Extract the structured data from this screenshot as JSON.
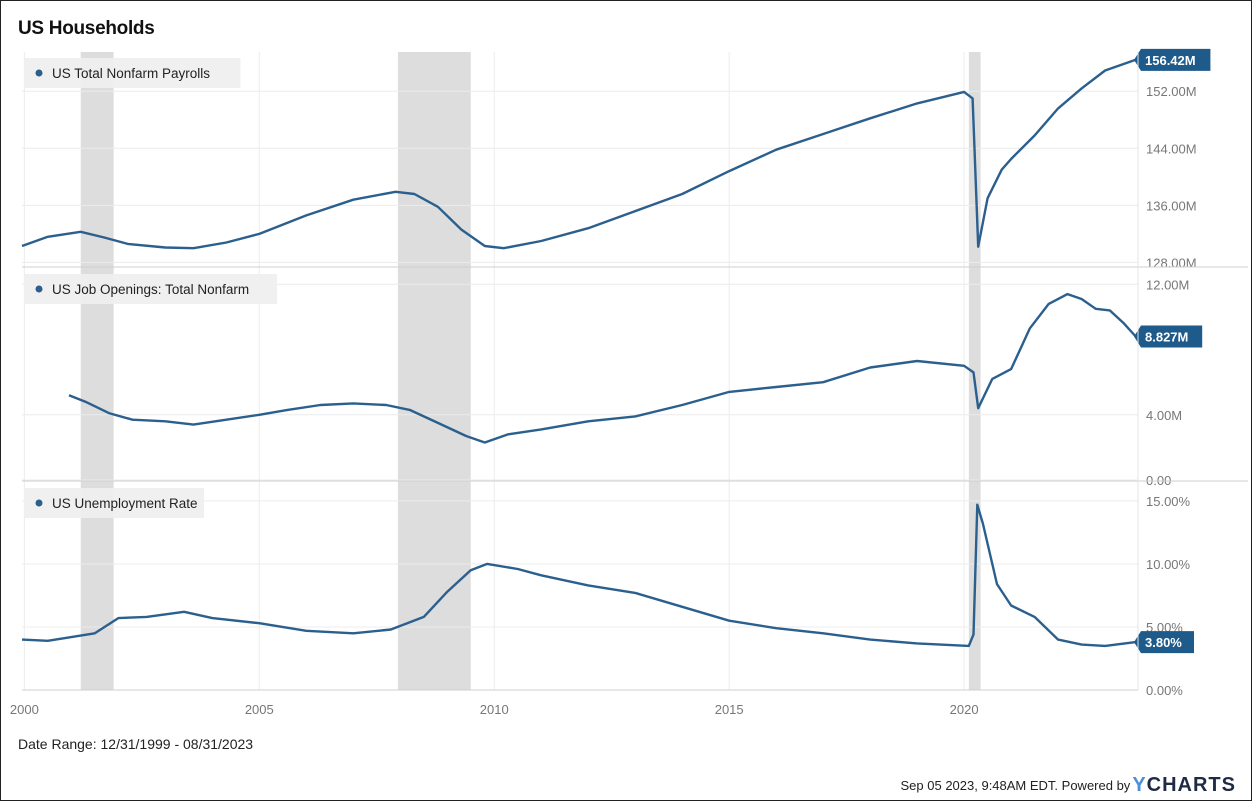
{
  "title": "US Households",
  "date_range": "Date Range: 12/31/1999 - 08/31/2023",
  "footer": {
    "text": "Sep 05 2023, 9:48AM EDT. Powered by",
    "brand_y": "Y",
    "brand_rest": "CHARTS"
  },
  "colors": {
    "line": "#2b5f8e",
    "badge": "#1e5a8a",
    "recession": "#dddddd",
    "grid": "#ececec"
  },
  "chart_data": {
    "type": "line",
    "x_ticks": [
      "2000",
      "2005",
      "2010",
      "2015",
      "2020"
    ],
    "x_range": [
      1999.95,
      2023.7
    ],
    "recessions": [
      [
        2001.2,
        2001.9
      ],
      [
        2007.95,
        2009.5
      ],
      [
        2020.1,
        2020.35
      ]
    ],
    "panels": [
      {
        "name": "US Total Nonfarm Payrolls",
        "last_value_label": "156.42M",
        "ylim": [
          127.5,
          157.5
        ],
        "y_ticks": [
          128,
          136,
          144,
          152
        ],
        "y_tick_labels": [
          "128.00M",
          "136.00M",
          "144.00M",
          "152.00M"
        ],
        "points": [
          [
            1999.95,
            130.3
          ],
          [
            2000.5,
            131.6
          ],
          [
            2001.2,
            132.3
          ],
          [
            2001.7,
            131.5
          ],
          [
            2002.2,
            130.6
          ],
          [
            2003.0,
            130.1
          ],
          [
            2003.6,
            130.0
          ],
          [
            2004.3,
            130.8
          ],
          [
            2005.0,
            132.0
          ],
          [
            2006.0,
            134.6
          ],
          [
            2007.0,
            136.8
          ],
          [
            2007.9,
            137.9
          ],
          [
            2008.3,
            137.6
          ],
          [
            2008.8,
            135.8
          ],
          [
            2009.3,
            132.6
          ],
          [
            2009.8,
            130.3
          ],
          [
            2010.2,
            130.0
          ],
          [
            2011.0,
            131.0
          ],
          [
            2012.0,
            132.8
          ],
          [
            2013.0,
            135.2
          ],
          [
            2014.0,
            137.6
          ],
          [
            2015.0,
            140.8
          ],
          [
            2016.0,
            143.8
          ],
          [
            2017.0,
            146.0
          ],
          [
            2018.0,
            148.2
          ],
          [
            2019.0,
            150.3
          ],
          [
            2020.0,
            151.9
          ],
          [
            2020.18,
            151.0
          ],
          [
            2020.3,
            130.2
          ],
          [
            2020.5,
            137.0
          ],
          [
            2020.8,
            141.0
          ],
          [
            2021.0,
            142.5
          ],
          [
            2021.5,
            145.8
          ],
          [
            2022.0,
            149.6
          ],
          [
            2022.5,
            152.4
          ],
          [
            2023.0,
            154.9
          ],
          [
            2023.65,
            156.4
          ]
        ]
      },
      {
        "name": "US Job Openings: Total Nonfarm",
        "last_value_label": "8.827M",
        "ylim": [
          0,
          13.0
        ],
        "y_ticks": [
          0,
          4,
          12
        ],
        "y_tick_labels": [
          "0.00",
          "4.00M",
          "12.00M"
        ],
        "points": [
          [
            2000.95,
            5.2
          ],
          [
            2001.3,
            4.8
          ],
          [
            2001.8,
            4.1
          ],
          [
            2002.3,
            3.7
          ],
          [
            2003.0,
            3.6
          ],
          [
            2003.6,
            3.4
          ],
          [
            2004.3,
            3.7
          ],
          [
            2005.0,
            4.0
          ],
          [
            2005.6,
            4.3
          ],
          [
            2006.3,
            4.6
          ],
          [
            2007.0,
            4.7
          ],
          [
            2007.7,
            4.6
          ],
          [
            2008.2,
            4.3
          ],
          [
            2008.8,
            3.5
          ],
          [
            2009.4,
            2.7
          ],
          [
            2009.8,
            2.3
          ],
          [
            2010.3,
            2.8
          ],
          [
            2011.0,
            3.1
          ],
          [
            2012.0,
            3.6
          ],
          [
            2013.0,
            3.9
          ],
          [
            2014.0,
            4.6
          ],
          [
            2015.0,
            5.4
          ],
          [
            2016.0,
            5.7
          ],
          [
            2017.0,
            6.0
          ],
          [
            2018.0,
            6.9
          ],
          [
            2019.0,
            7.3
          ],
          [
            2020.0,
            7.0
          ],
          [
            2020.2,
            6.6
          ],
          [
            2020.3,
            4.4
          ],
          [
            2020.6,
            6.2
          ],
          [
            2021.0,
            6.8
          ],
          [
            2021.4,
            9.3
          ],
          [
            2021.8,
            10.8
          ],
          [
            2022.2,
            11.4
          ],
          [
            2022.5,
            11.1
          ],
          [
            2022.8,
            10.5
          ],
          [
            2023.1,
            10.4
          ],
          [
            2023.4,
            9.6
          ],
          [
            2023.65,
            8.8
          ]
        ]
      },
      {
        "name": "US Unemployment Rate",
        "last_value_label": "3.80%",
        "ylim": [
          0,
          16.5
        ],
        "y_ticks": [
          0,
          5,
          10,
          15
        ],
        "y_tick_labels": [
          "0.00%",
          "5.00%",
          "10.00%",
          "15.00%"
        ],
        "points": [
          [
            1999.95,
            4.0
          ],
          [
            2000.5,
            3.9
          ],
          [
            2001.0,
            4.2
          ],
          [
            2001.5,
            4.5
          ],
          [
            2002.0,
            5.7
          ],
          [
            2002.6,
            5.8
          ],
          [
            2003.4,
            6.2
          ],
          [
            2004.0,
            5.7
          ],
          [
            2005.0,
            5.3
          ],
          [
            2006.0,
            4.7
          ],
          [
            2007.0,
            4.5
          ],
          [
            2007.8,
            4.8
          ],
          [
            2008.5,
            5.8
          ],
          [
            2009.0,
            7.8
          ],
          [
            2009.5,
            9.5
          ],
          [
            2009.85,
            10.0
          ],
          [
            2010.5,
            9.6
          ],
          [
            2011.0,
            9.1
          ],
          [
            2012.0,
            8.3
          ],
          [
            2013.0,
            7.7
          ],
          [
            2014.0,
            6.6
          ],
          [
            2015.0,
            5.5
          ],
          [
            2016.0,
            4.9
          ],
          [
            2017.0,
            4.5
          ],
          [
            2018.0,
            4.0
          ],
          [
            2019.0,
            3.7
          ],
          [
            2020.1,
            3.5
          ],
          [
            2020.2,
            4.4
          ],
          [
            2020.28,
            14.7
          ],
          [
            2020.4,
            13.2
          ],
          [
            2020.7,
            8.4
          ],
          [
            2021.0,
            6.7
          ],
          [
            2021.5,
            5.8
          ],
          [
            2022.0,
            4.0
          ],
          [
            2022.5,
            3.6
          ],
          [
            2023.0,
            3.5
          ],
          [
            2023.65,
            3.8
          ]
        ]
      }
    ]
  }
}
